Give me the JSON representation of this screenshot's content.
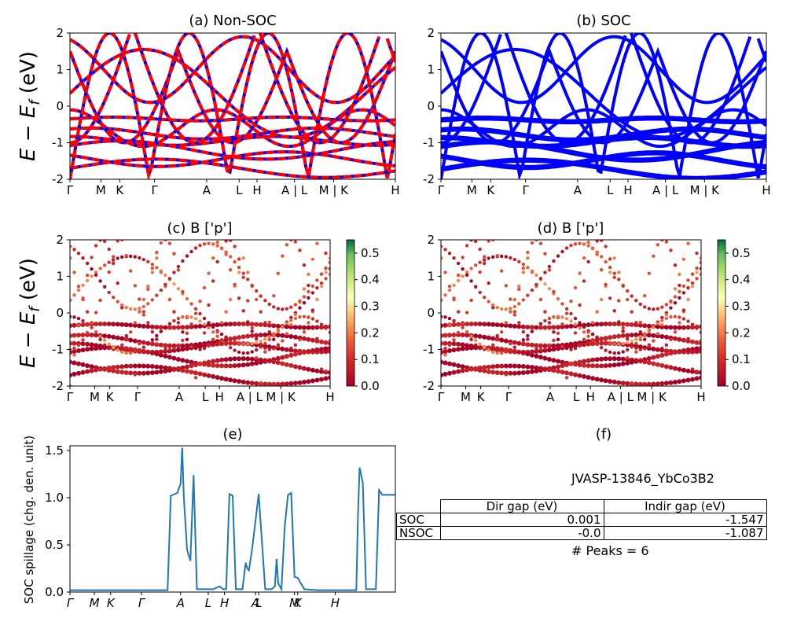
{
  "chart_data": [
    {
      "type": "line",
      "panel": "a",
      "title": "(a) Non-SOC",
      "ylabel": "E - E_f (eV)",
      "ylim": [
        -2,
        2
      ],
      "yticks": [
        "-2",
        "-1",
        "0",
        "1",
        "2"
      ],
      "xticks": [
        "Γ",
        "M",
        "K",
        "Γ",
        "A",
        "L",
        "H",
        "A | L",
        "M | K",
        "H"
      ],
      "series_colors": [
        "#ff0000",
        "#0000ff"
      ],
      "line_style": "dashed red over blue"
    },
    {
      "type": "line",
      "panel": "b",
      "title": "(b) SOC",
      "ylim": [
        -2,
        2
      ],
      "yticks": [
        "-2",
        "-1",
        "0",
        "1",
        "2"
      ],
      "xticks": [
        "Γ",
        "M",
        "K",
        "Γ",
        "A",
        "L",
        "H",
        "A | L",
        "M | K",
        "H"
      ],
      "series_colors": [
        "#0000ff"
      ]
    },
    {
      "type": "scatter",
      "panel": "c",
      "title": "(c)  B ['p']",
      "ylabel": "E - E_f (eV)",
      "ylim": [
        -2,
        2
      ],
      "yticks": [
        "-2",
        "-1",
        "0",
        "1",
        "2"
      ],
      "xticks": [
        "Γ",
        "M",
        "K",
        "Γ",
        "A",
        "L",
        "H",
        "A | L",
        "M | K",
        "H"
      ],
      "colorbar": {
        "min": 0.0,
        "max": 0.55,
        "ticks": [
          "0.0",
          "0.1",
          "0.2",
          "0.3",
          "0.4",
          "0.5"
        ],
        "colormap": "RdYlGn"
      }
    },
    {
      "type": "scatter",
      "panel": "d",
      "title": "(d) B ['p']",
      "ylim": [
        -2,
        2
      ],
      "yticks": [
        "-2",
        "-1",
        "0",
        "1",
        "2"
      ],
      "xticks": [
        "Γ",
        "M",
        "K",
        "Γ",
        "A",
        "L",
        "H",
        "A | L",
        "M | K",
        "H"
      ],
      "colorbar": {
        "min": 0.0,
        "max": 0.55,
        "ticks": [
          "0.0",
          "0.1",
          "0.2",
          "0.3",
          "0.4",
          "0.5"
        ],
        "colormap": "RdYlGn"
      }
    },
    {
      "type": "line",
      "panel": "e",
      "title": "(e)",
      "ylabel": "SOC spillage (chg. den. unit)",
      "ylim": [
        0,
        1.55
      ],
      "yticks": [
        "0.0",
        "0.5",
        "1.0",
        "1.5"
      ],
      "xticks": [
        "Γ",
        "M",
        "K",
        "Γ",
        "A",
        "L",
        "H",
        "A",
        "L",
        "M",
        "K",
        "H"
      ],
      "color": "#1f77b4",
      "x": [
        0,
        0.24,
        0.27,
        0.3,
        0.31,
        0.33,
        0.34,
        0.345,
        0.35,
        0.36,
        0.37,
        0.38,
        0.39,
        0.4,
        0.41,
        0.42,
        0.44,
        0.46,
        0.47,
        0.48,
        0.49,
        0.5,
        0.51,
        0.52,
        0.53,
        0.54,
        0.545,
        0.55,
        0.56,
        0.57,
        0.58,
        0.6,
        0.62,
        0.63,
        0.635,
        0.64,
        0.65,
        0.66,
        0.67,
        0.68,
        0.69,
        0.7,
        0.72,
        0.76,
        0.77,
        0.88,
        0.885,
        0.89,
        0.9,
        0.91,
        0.94,
        0.95,
        0.96,
        1.0
      ],
      "y": [
        0.02,
        0.02,
        0.02,
        0.02,
        1.02,
        1.05,
        1.15,
        1.53,
        1.0,
        0.45,
        0.33,
        1.24,
        0.03,
        0.03,
        0.03,
        0.03,
        0.03,
        0.06,
        0.03,
        0.03,
        1.04,
        1.02,
        0.03,
        0.03,
        0.03,
        0.31,
        0.25,
        0.23,
        0.46,
        0.75,
        1.04,
        0.03,
        0.03,
        0.06,
        0.35,
        0.09,
        0.03,
        0.69,
        1.03,
        1.05,
        0.16,
        0.15,
        0.03,
        0.02,
        0.02,
        0.02,
        0.8,
        1.32,
        1.16,
        0.03,
        0.03,
        1.08,
        1.03,
        1.03
      ]
    },
    {
      "type": "table",
      "panel": "f",
      "title": "(f)",
      "subtitle": "JVASP-13846_YbCo3B2",
      "columns": [
        "Dir gap (eV)",
        "Indir gap (eV)"
      ],
      "rows": [
        {
          "label": "SOC",
          "values": [
            "0.001",
            "-1.547"
          ]
        },
        {
          "label": "NSOC",
          "values": [
            "-0.0",
            "-1.087"
          ]
        }
      ],
      "footer": "# Peaks = 6"
    }
  ]
}
